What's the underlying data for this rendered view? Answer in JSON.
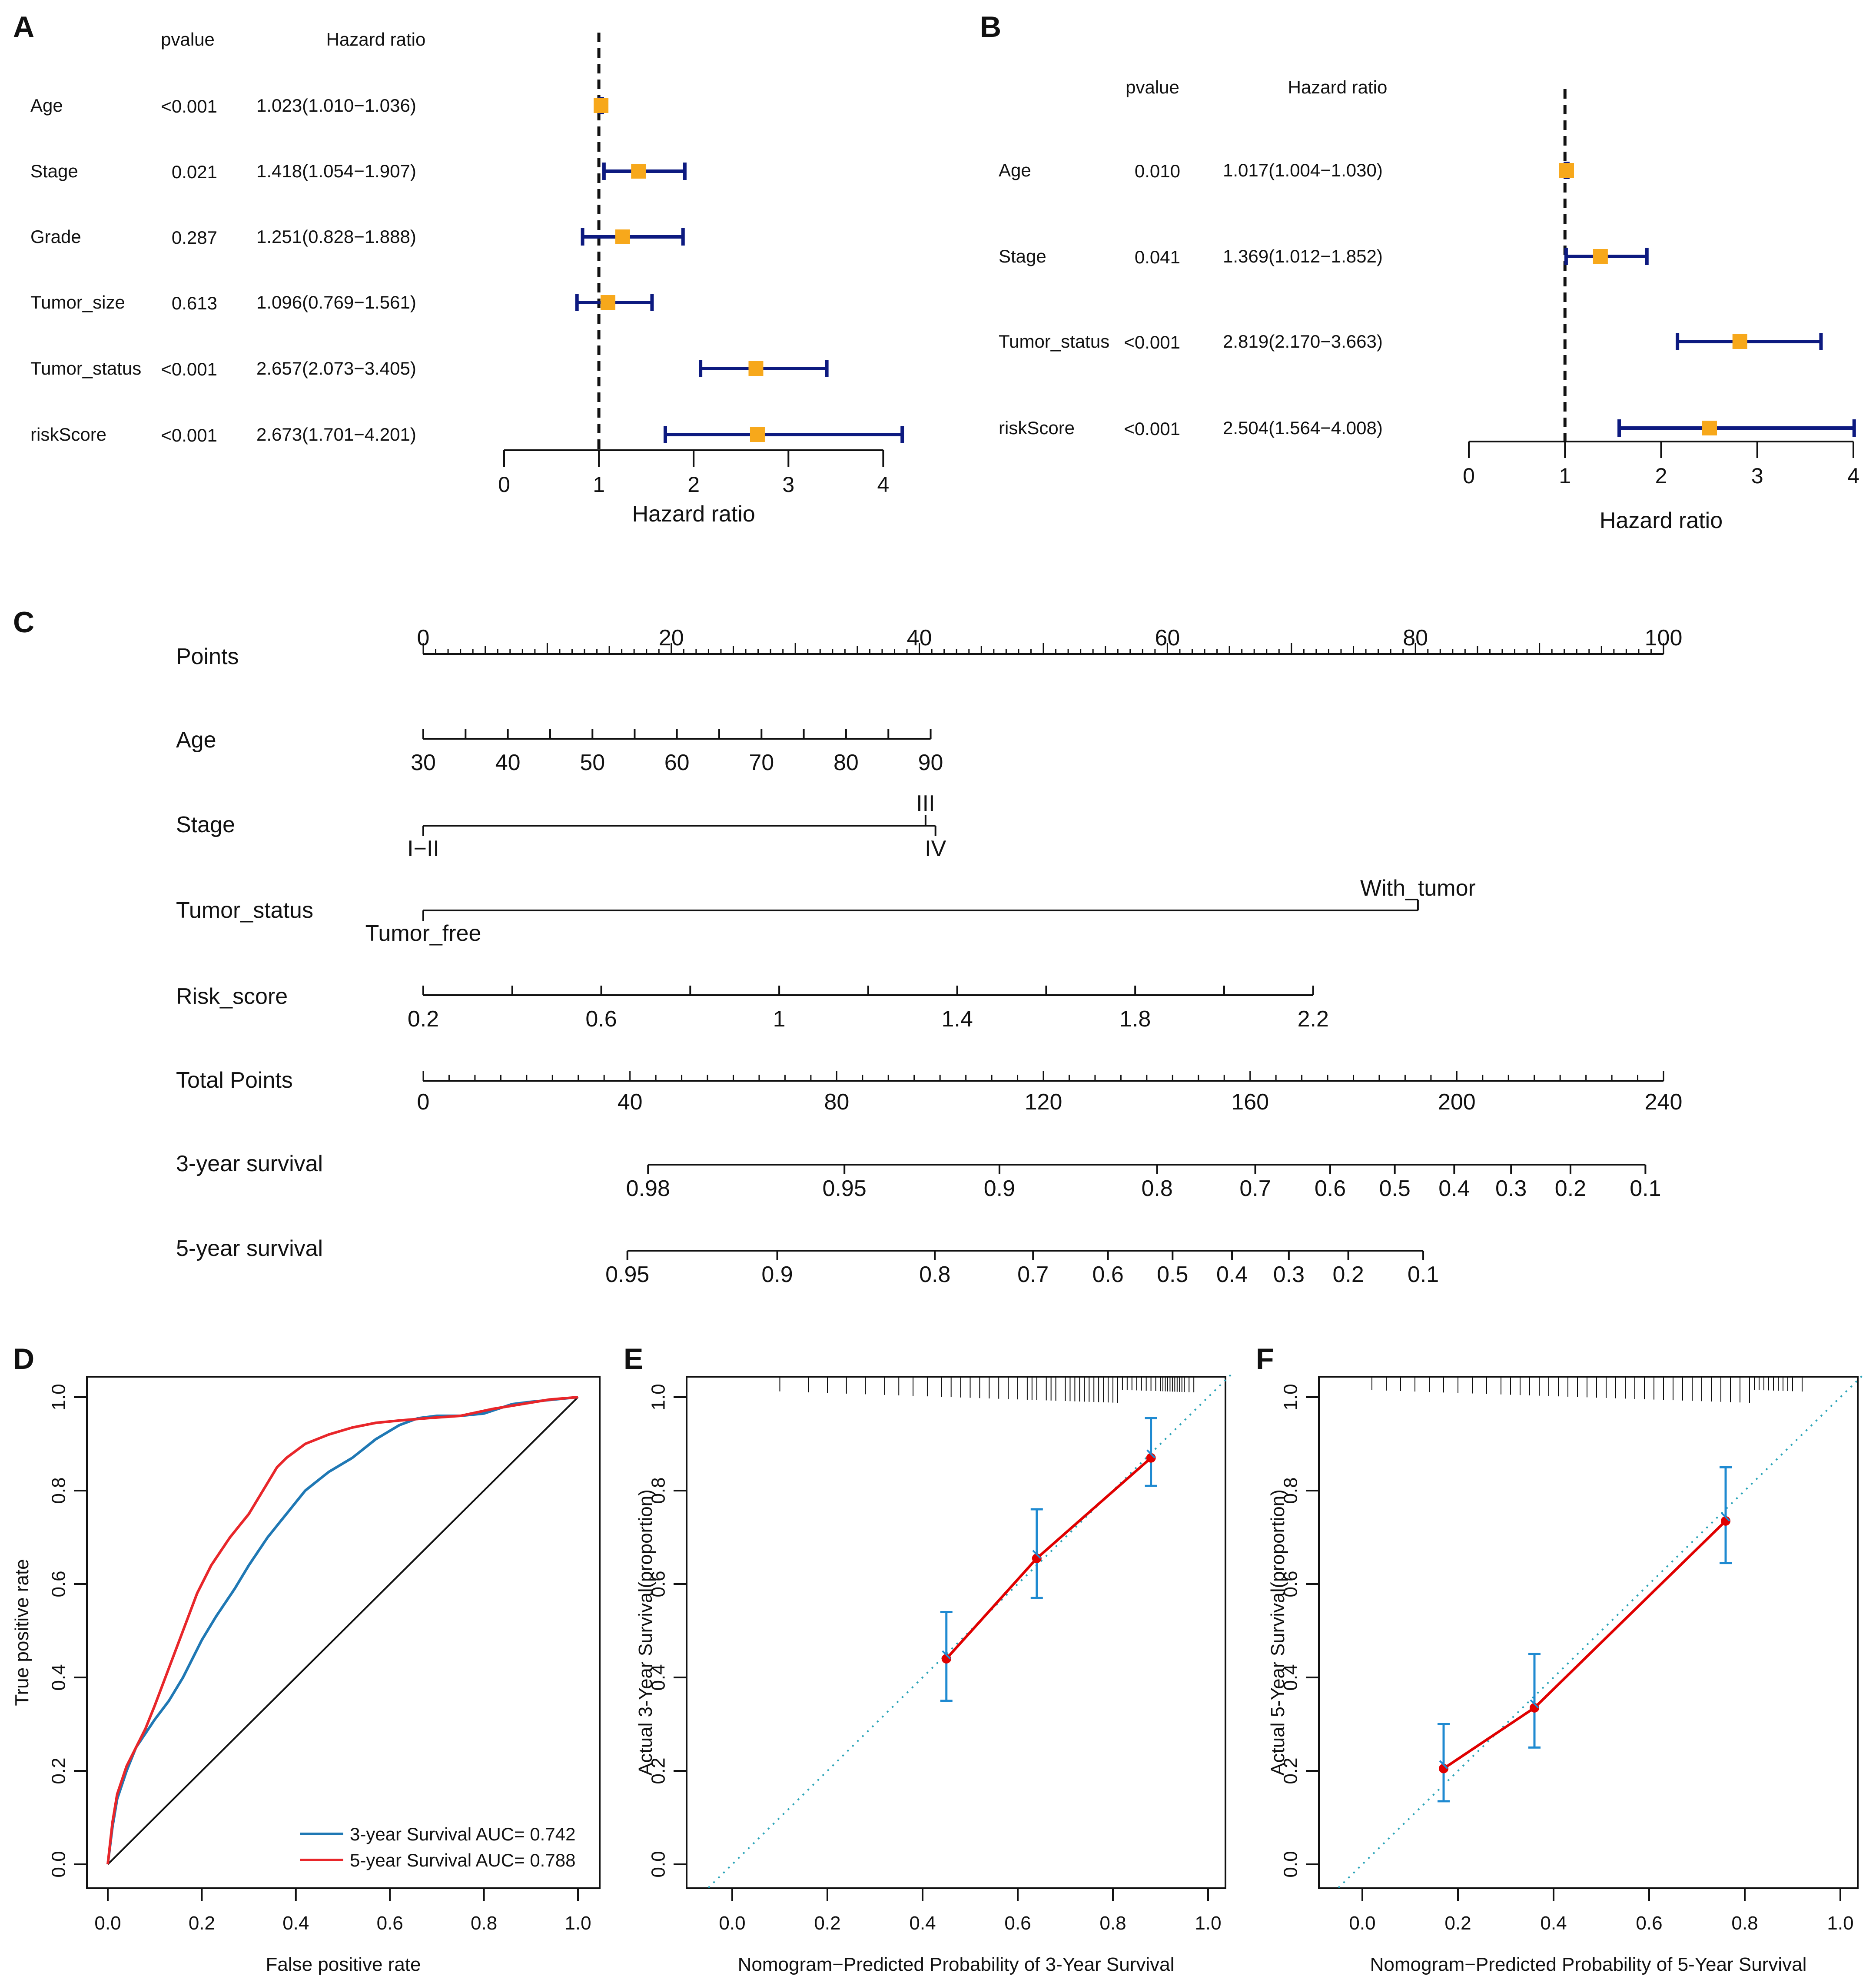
{
  "colors": {
    "ci": "#0d1a80",
    "marker": "#f7a81b",
    "axis": "#111111",
    "roc3": "#1f78b4",
    "roc5": "#e8262a",
    "calib_line": "#e00000",
    "calib_err": "#1f8ad1",
    "calib_diag": "#2aa3b7"
  },
  "chart_data": [
    {
      "panel": "A",
      "type": "forest",
      "col_pvalue": "pvalue",
      "col_hr": "Hazard ratio",
      "xlabel": "Hazard ratio",
      "xlim": [
        0,
        4.2
      ],
      "xticks": [
        "0",
        "1",
        "2",
        "3",
        "4"
      ],
      "xtick_values": [
        0,
        1,
        2,
        3,
        4
      ],
      "reference": 1,
      "rows": [
        {
          "label": "Age",
          "pvalue": "<0.001",
          "hr_text": "1.023(1.010−1.036)",
          "hr": 1.023,
          "lo": 1.01,
          "hi": 1.036
        },
        {
          "label": "Stage",
          "pvalue": "0.021",
          "hr_text": "1.418(1.054−1.907)",
          "hr": 1.418,
          "lo": 1.054,
          "hi": 1.907
        },
        {
          "label": "Grade",
          "pvalue": "0.287",
          "hr_text": "1.251(0.828−1.888)",
          "hr": 1.251,
          "lo": 0.828,
          "hi": 1.888
        },
        {
          "label": "Tumor_size",
          "pvalue": "0.613",
          "hr_text": "1.096(0.769−1.561)",
          "hr": 1.096,
          "lo": 0.769,
          "hi": 1.561
        },
        {
          "label": "Tumor_status",
          "pvalue": "<0.001",
          "hr_text": "2.657(2.073−3.405)",
          "hr": 2.657,
          "lo": 2.073,
          "hi": 3.405
        },
        {
          "label": "riskScore",
          "pvalue": "<0.001",
          "hr_text": "2.673(1.701−4.201)",
          "hr": 2.673,
          "lo": 1.701,
          "hi": 4.201
        }
      ]
    },
    {
      "panel": "B",
      "type": "forest",
      "col_pvalue": "pvalue",
      "col_hr": "Hazard ratio",
      "xlabel": "Hazard ratio",
      "xlim": [
        0,
        4.0
      ],
      "xticks": [
        "0",
        "1",
        "2",
        "3",
        "4"
      ],
      "xtick_values": [
        0,
        1,
        2,
        3,
        4
      ],
      "reference": 1,
      "rows": [
        {
          "label": "Age",
          "pvalue": "0.010",
          "hr_text": "1.017(1.004−1.030)",
          "hr": 1.017,
          "lo": 1.004,
          "hi": 1.03
        },
        {
          "label": "Stage",
          "pvalue": "0.041",
          "hr_text": "1.369(1.012−1.852)",
          "hr": 1.369,
          "lo": 1.012,
          "hi": 1.852
        },
        {
          "label": "Tumor_status",
          "pvalue": "<0.001",
          "hr_text": "2.819(2.170−3.663)",
          "hr": 2.819,
          "lo": 2.17,
          "hi": 3.663
        },
        {
          "label": "riskScore",
          "pvalue": "<0.001",
          "hr_text": "2.504(1.564−4.008)",
          "hr": 2.504,
          "lo": 1.564,
          "hi": 4.008
        }
      ]
    },
    {
      "panel": "C",
      "type": "nomogram",
      "points_scale": {
        "min": 0,
        "max": 100
      },
      "rows": [
        {
          "label": "Points",
          "kind": "points",
          "ticks": [
            {
              "text": "0",
              "pts": 0
            },
            {
              "text": "20",
              "pts": 20
            },
            {
              "text": "40",
              "pts": 40
            },
            {
              "text": "60",
              "pts": 60
            },
            {
              "text": "80",
              "pts": 80
            },
            {
              "text": "100",
              "pts": 100
            }
          ]
        },
        {
          "label": "Age",
          "kind": "scale",
          "ticks": [
            {
              "text": "30",
              "pts": 0
            },
            {
              "text": "40",
              "pts": 6.82
            },
            {
              "text": "50",
              "pts": 13.64
            },
            {
              "text": "60",
              "pts": 20.45
            },
            {
              "text": "70",
              "pts": 27.27
            },
            {
              "text": "80",
              "pts": 34.09
            },
            {
              "text": "90",
              "pts": 40.91
            }
          ]
        },
        {
          "label": "Stage",
          "kind": "categorical",
          "ticks": [
            {
              "text": "I−II",
              "pts": 0,
              "pos": "below"
            },
            {
              "text": "III",
              "pts": 40.5,
              "pos": "above"
            },
            {
              "text": "IV",
              "pts": 41.3,
              "pos": "below"
            }
          ]
        },
        {
          "label": "Tumor_status",
          "kind": "categorical",
          "ticks": [
            {
              "text": "Tumor_free",
              "pts": 0,
              "pos": "below"
            },
            {
              "text": "With_tumor",
              "pts": 80.2,
              "pos": "above"
            }
          ]
        },
        {
          "label": "Risk_score",
          "kind": "scale",
          "ticks": [
            {
              "text": "0.2",
              "pts": 0
            },
            {
              "text": "0.6",
              "pts": 14.35
            },
            {
              "text": "1",
              "pts": 28.7
            },
            {
              "text": "1.4",
              "pts": 43.05
            },
            {
              "text": "1.8",
              "pts": 57.4
            },
            {
              "text": "2.2",
              "pts": 71.75
            }
          ]
        },
        {
          "label": "Total Points",
          "kind": "total",
          "max": 240,
          "ticks": [
            {
              "text": "0",
              "val": 0
            },
            {
              "text": "40",
              "val": 40
            },
            {
              "text": "80",
              "val": 80
            },
            {
              "text": "120",
              "val": 120
            },
            {
              "text": "160",
              "val": 160
            },
            {
              "text": "200",
              "val": 200
            },
            {
              "text": "240",
              "val": 240
            }
          ]
        },
        {
          "label": "3-year survival",
          "kind": "survival",
          "ticks": [
            {
              "text": "0.98",
              "val": 43.5
            },
            {
              "text": "0.95",
              "val": 81.5
            },
            {
              "text": "0.9",
              "val": 111.5
            },
            {
              "text": "0.8",
              "val": 142
            },
            {
              "text": "0.7",
              "val": 161
            },
            {
              "text": "0.6",
              "val": 175.5
            },
            {
              "text": "0.5",
              "val": 188
            },
            {
              "text": "0.4",
              "val": 199.5
            },
            {
              "text": "0.3",
              "val": 210.5
            },
            {
              "text": "0.2",
              "val": 222
            },
            {
              "text": "0.1",
              "val": 236.5
            }
          ]
        },
        {
          "label": "5-year survival",
          "kind": "survival",
          "ticks": [
            {
              "text": "0.95",
              "val": 39.5
            },
            {
              "text": "0.9",
              "val": 68.5
            },
            {
              "text": "0.8",
              "val": 99
            },
            {
              "text": "0.7",
              "val": 118
            },
            {
              "text": "0.6",
              "val": 132.5
            },
            {
              "text": "0.5",
              "val": 145
            },
            {
              "text": "0.4",
              "val": 156.5
            },
            {
              "text": "0.3",
              "val": 167.5
            },
            {
              "text": "0.2",
              "val": 179
            },
            {
              "text": "0.1",
              "val": 193.5
            }
          ]
        }
      ]
    },
    {
      "panel": "D",
      "type": "line",
      "xlabel": "False positive rate",
      "ylabel": "True positive rate",
      "xlim": [
        0,
        1
      ],
      "ylim": [
        0,
        1
      ],
      "ticks": [
        "0.0",
        "0.2",
        "0.4",
        "0.6",
        "0.8",
        "1.0"
      ],
      "tick_values": [
        0,
        0.2,
        0.4,
        0.6,
        0.8,
        1.0
      ],
      "series": [
        {
          "name": "3-year Survival AUC= 0.742",
          "color_key": "roc3",
          "x": [
            0,
            0.01,
            0.02,
            0.04,
            0.06,
            0.08,
            0.1,
            0.13,
            0.16,
            0.18,
            0.2,
            0.23,
            0.27,
            0.3,
            0.34,
            0.38,
            0.42,
            0.47,
            0.52,
            0.57,
            0.62,
            0.66,
            0.7,
            0.75,
            0.8,
            0.83,
            0.86,
            0.9,
            0.95,
            1.0
          ],
          "y": [
            0,
            0.08,
            0.14,
            0.2,
            0.25,
            0.28,
            0.31,
            0.35,
            0.4,
            0.44,
            0.48,
            0.53,
            0.59,
            0.64,
            0.7,
            0.75,
            0.8,
            0.84,
            0.87,
            0.91,
            0.94,
            0.955,
            0.96,
            0.96,
            0.965,
            0.975,
            0.985,
            0.99,
            0.995,
            1.0
          ]
        },
        {
          "name": "5-year Survival AUC= 0.788",
          "color_key": "roc5",
          "x": [
            0,
            0.01,
            0.02,
            0.04,
            0.06,
            0.08,
            0.1,
            0.13,
            0.16,
            0.19,
            0.22,
            0.26,
            0.3,
            0.33,
            0.36,
            0.38,
            0.42,
            0.47,
            0.52,
            0.57,
            0.62,
            0.68,
            0.75,
            0.82,
            0.88,
            0.94,
            1.0
          ],
          "y": [
            0,
            0.09,
            0.15,
            0.21,
            0.25,
            0.29,
            0.34,
            0.42,
            0.5,
            0.58,
            0.64,
            0.7,
            0.75,
            0.8,
            0.85,
            0.87,
            0.9,
            0.92,
            0.935,
            0.945,
            0.95,
            0.955,
            0.96,
            0.975,
            0.985,
            0.995,
            1.0
          ]
        }
      ]
    },
    {
      "panel": "E",
      "type": "scatter",
      "xlabel": "Nomogram−Predicted Probability of 3-Year Survival",
      "ylabel": "Actual 3-Year Survival(proportion)",
      "xlim": [
        0,
        1
      ],
      "ylim": [
        0,
        1
      ],
      "ticks": [
        "0.0",
        "0.2",
        "0.4",
        "0.6",
        "0.8",
        "1.0"
      ],
      "tick_values": [
        0,
        0.2,
        0.4,
        0.6,
        0.8,
        1.0
      ],
      "points": [
        {
          "x": 0.45,
          "y": 0.44,
          "lo": 0.35,
          "hi": 0.54
        },
        {
          "x": 0.64,
          "y": 0.655,
          "lo": 0.57,
          "hi": 0.76
        },
        {
          "x": 0.88,
          "y": 0.87,
          "lo": 0.81,
          "hi": 0.955
        }
      ],
      "rug": [
        0.1,
        0.16,
        0.2,
        0.24,
        0.28,
        0.32,
        0.35,
        0.38,
        0.41,
        0.44,
        0.46,
        0.48,
        0.5,
        0.52,
        0.54,
        0.56,
        0.58,
        0.6,
        0.62,
        0.63,
        0.64,
        0.66,
        0.67,
        0.68,
        0.7,
        0.71,
        0.72,
        0.73,
        0.74,
        0.75,
        0.76,
        0.77,
        0.78,
        0.79,
        0.8,
        0.81,
        0.82,
        0.83,
        0.84,
        0.85,
        0.86,
        0.87,
        0.88,
        0.89,
        0.9,
        0.905,
        0.91,
        0.915,
        0.92,
        0.925,
        0.93,
        0.935,
        0.94,
        0.945,
        0.95,
        0.96,
        0.97
      ]
    },
    {
      "panel": "F",
      "type": "scatter",
      "xlabel": "Nomogram−Predicted Probability of 5-Year Survival",
      "ylabel": "Actual 5-Year Survival(proportion)",
      "xlim": [
        0,
        1
      ],
      "ylim": [
        0,
        1
      ],
      "ticks": [
        "0.0",
        "0.2",
        "0.4",
        "0.6",
        "0.8",
        "1.0"
      ],
      "tick_values": [
        0,
        0.2,
        0.4,
        0.6,
        0.8,
        1.0
      ],
      "points": [
        {
          "x": 0.17,
          "y": 0.205,
          "lo": 0.135,
          "hi": 0.3
        },
        {
          "x": 0.36,
          "y": 0.335,
          "lo": 0.25,
          "hi": 0.45
        },
        {
          "x": 0.76,
          "y": 0.735,
          "lo": 0.645,
          "hi": 0.85
        }
      ],
      "rug": [
        0.02,
        0.05,
        0.08,
        0.11,
        0.14,
        0.17,
        0.2,
        0.23,
        0.26,
        0.29,
        0.31,
        0.33,
        0.35,
        0.37,
        0.39,
        0.41,
        0.43,
        0.45,
        0.47,
        0.49,
        0.51,
        0.53,
        0.55,
        0.57,
        0.59,
        0.61,
        0.63,
        0.65,
        0.67,
        0.69,
        0.71,
        0.73,
        0.75,
        0.77,
        0.79,
        0.81,
        0.82,
        0.83,
        0.84,
        0.85,
        0.86,
        0.87,
        0.88,
        0.89,
        0.9,
        0.92
      ]
    }
  ],
  "panel_labels": [
    "A",
    "B",
    "C",
    "D",
    "E",
    "F"
  ]
}
